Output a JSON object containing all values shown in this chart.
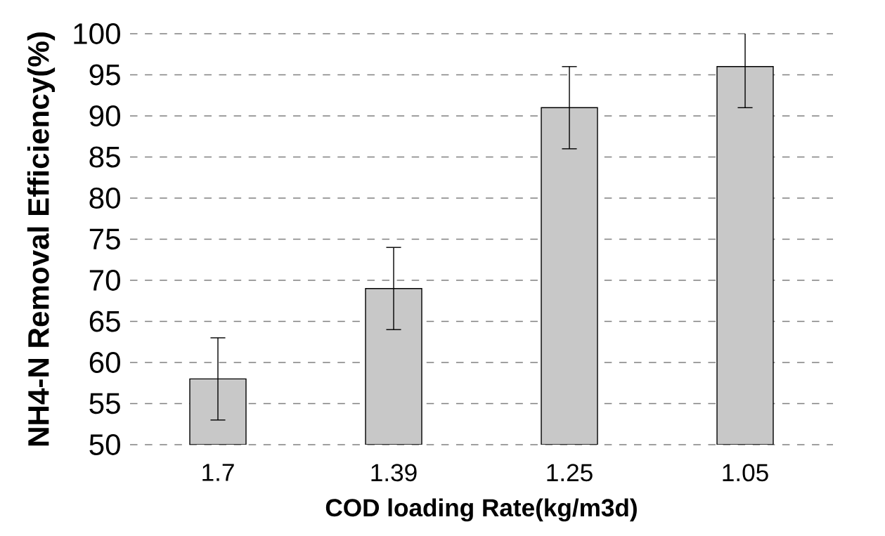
{
  "chart_data": {
    "type": "bar",
    "xlabel": "COD loading Rate(kg/m3d)",
    "ylabel": "NH4-N Removal Efficiency(%)",
    "categories": [
      "1.7",
      "1.39",
      "1.25",
      "1.05"
    ],
    "values": [
      58,
      69,
      91,
      96
    ],
    "errors": [
      5,
      5,
      5,
      5
    ],
    "color": "#c8c8c8",
    "ylim": [
      50,
      100
    ],
    "yticks": [
      50,
      55,
      60,
      65,
      70,
      75,
      80,
      85,
      90,
      95,
      100
    ],
    "grid": "y"
  }
}
